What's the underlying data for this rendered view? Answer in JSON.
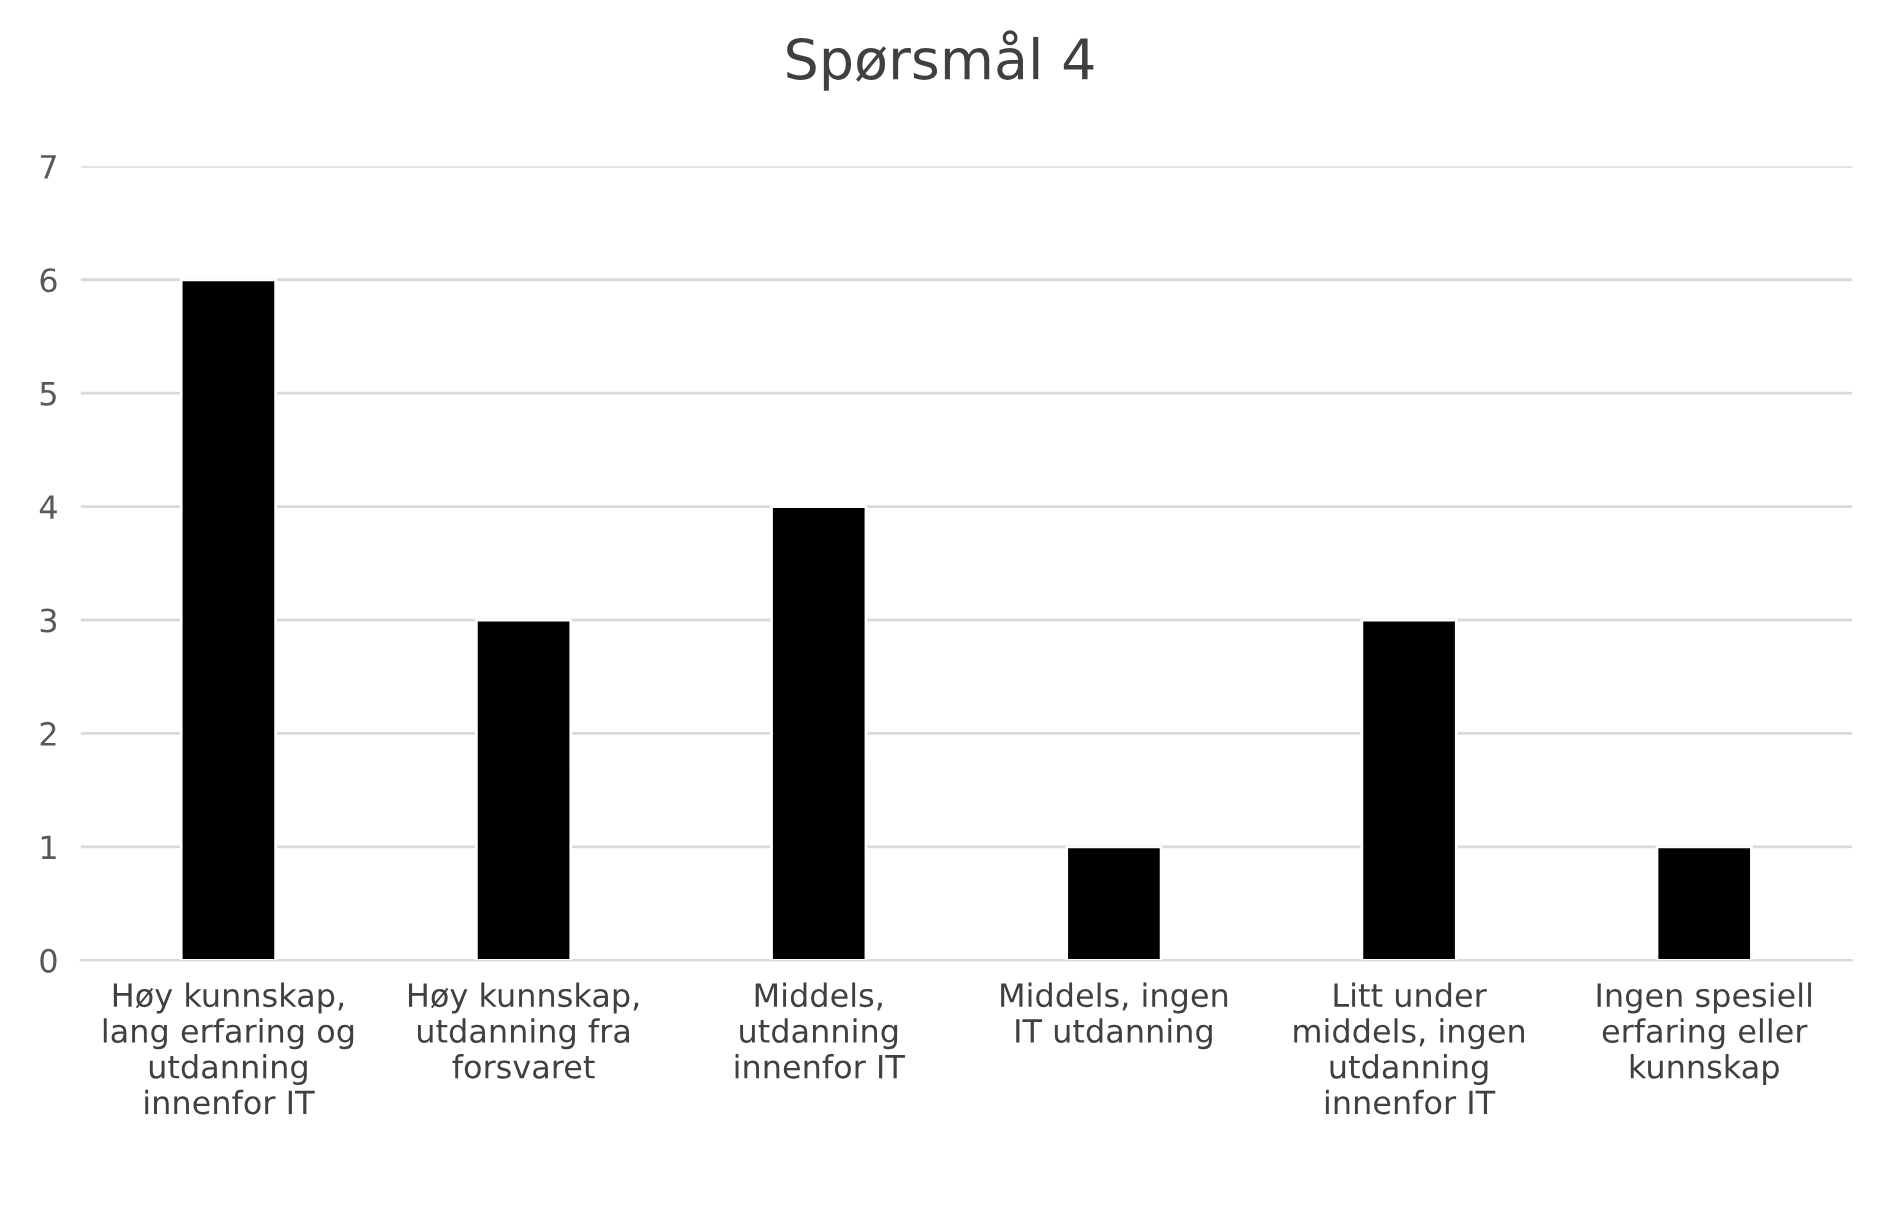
{
  "chart_data": {
    "type": "bar",
    "title": "Spørsmål 4",
    "categories": [
      "Høy kunnskap,\nlang erfaring og\nutdanning\ninnenfor IT",
      "Høy kunnskap,\nutdanning fra\nforsvaret",
      "Middels,\nutdanning\ninnenfor IT",
      "Middels, ingen\nIT utdanning",
      "Litt under\nmiddels, ingen\nutdanning\ninnenfor IT",
      "Ingen spesiell\nerfaring eller\nkunnskap"
    ],
    "values": [
      6,
      3,
      4,
      1,
      3,
      1
    ],
    "color": "#000000",
    "ylim": [
      0,
      7
    ],
    "yticks": [
      0,
      1,
      2,
      3,
      4,
      5,
      6,
      7
    ],
    "grid": "y",
    "legend": false
  }
}
